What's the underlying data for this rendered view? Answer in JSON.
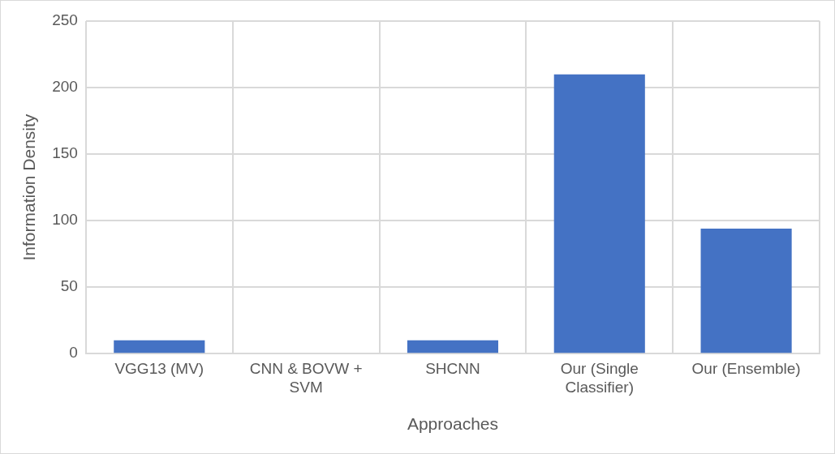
{
  "chart_data": {
    "type": "bar",
    "xlabel": "Approaches",
    "ylabel": "Information Density",
    "categories": [
      "VGG13 (MV)",
      "CNN & BOVW + SVM",
      "SHCNN",
      "Our (Single Classifier)",
      "Our (Ensemble)"
    ],
    "values": [
      10,
      0,
      10,
      210,
      94
    ],
    "color": "#4472c4",
    "ylim": [
      0,
      250
    ],
    "yticks": [
      0,
      50,
      100,
      150,
      200,
      250
    ],
    "grid": true
  }
}
